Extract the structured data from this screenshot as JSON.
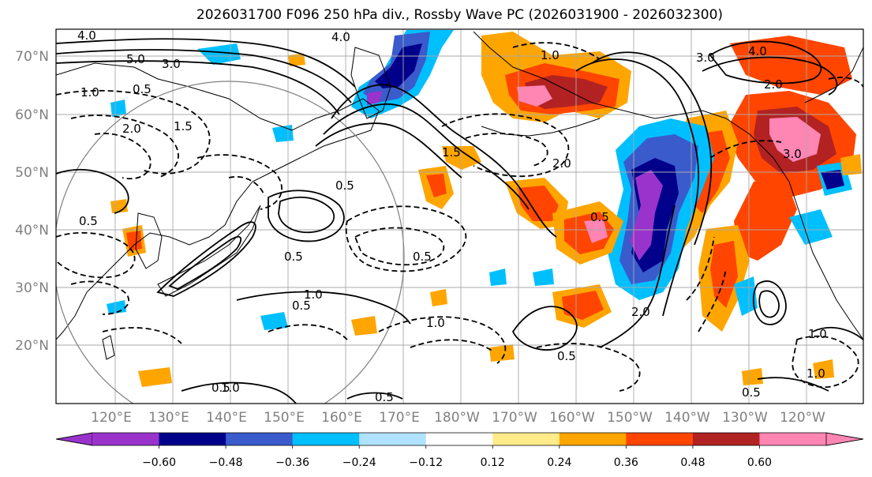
{
  "title": "2026031700 F096 250 hPa div., Rossby Wave PC (2026031900 - 2026032300)",
  "lat_labels": [
    "70°N",
    "60°N",
    "50°N",
    "40°N",
    "30°N",
    "20°N"
  ],
  "lon_labels": [
    "120°E",
    "130°E",
    "140°E",
    "150°E",
    "160°E",
    "170°E",
    "180°W",
    "170°W",
    "160°W",
    "150°W",
    "140°W",
    "130°W",
    "120°W"
  ],
  "colorbar": {
    "colors": [
      "#9933cc",
      "#00008b",
      "#3a5bcc",
      "#00bfff",
      "#b0e2ff",
      "#ffffff",
      "#ffeb8a",
      "#ffa500",
      "#ff4500",
      "#b22222",
      "#ff85b3"
    ],
    "ticks": [
      "−0.60",
      "−0.48",
      "−0.36",
      "−0.24",
      "−0.12",
      "0.12",
      "0.24",
      "0.36",
      "0.48",
      "0.60"
    ]
  },
  "contour_labels": {
    "c1": "4.0",
    "c2": "5.0",
    "c3": "3.0",
    "c4": "1.0",
    "c5": "0.5",
    "c6": "2.0",
    "c7": "1.5",
    "c8": "0.5",
    "c9": "1.0",
    "c10": "0.5",
    "c11": "0.5",
    "c12": "1.0",
    "c13": "0.5",
    "c14": "2.0",
    "c15": "0.5",
    "c16": "1.0",
    "c17": "4.0",
    "c18": "3.0",
    "c19": "2.0",
    "c20": "3.0",
    "c21": "1.0",
    "c22": "0.5",
    "c23": "0.5",
    "c24": "1.0",
    "c25": "0.5",
    "c26": "0.5",
    "c27": "1.5",
    "c28": "2.0",
    "c29": "4.0",
    "c30": "0.5",
    "c31": "1.0"
  }
}
